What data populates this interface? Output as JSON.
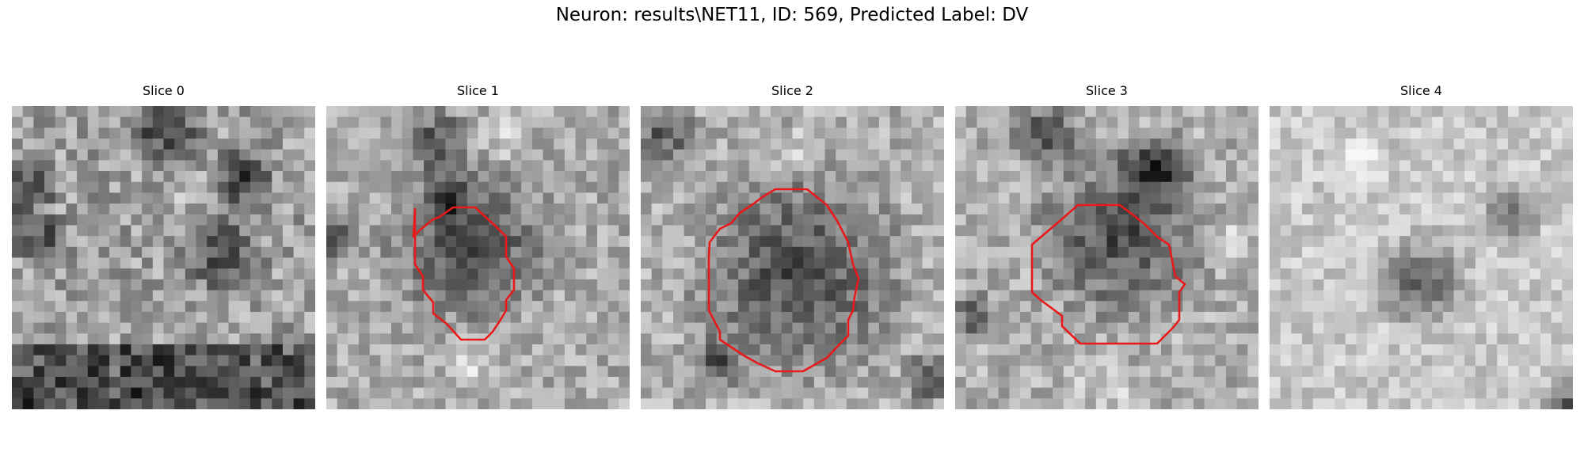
{
  "figure": {
    "title": "Neuron: results\\NET11, ID: 569, Predicted Label: DV"
  },
  "contour_color": "#e8191b",
  "grid_size": 28,
  "slices": [
    {
      "label": "Slice 0",
      "has_contour": false,
      "texture": {
        "base": 160,
        "range": 95,
        "seed": 11,
        "dark_blobs": [
          [
            0.05,
            0.27,
            0.08
          ],
          [
            0.5,
            0.07,
            0.1
          ],
          [
            0.75,
            0.25,
            0.09
          ],
          [
            0.7,
            0.5,
            0.1
          ],
          [
            0.1,
            0.45,
            0.07
          ]
        ],
        "dark_band": {
          "from": 0.77,
          "to": 1.0,
          "strength": 90
        },
        "light_spots": [
          [
            0.6,
            0.28,
            0.1
          ]
        ]
      }
    },
    {
      "label": "Slice 1",
      "has_contour": true,
      "texture": {
        "base": 170,
        "range": 80,
        "seed": 23,
        "dark_blobs": [
          [
            0.47,
            0.45,
            0.2
          ],
          [
            0.37,
            0.12,
            0.08
          ],
          [
            0.4,
            0.3,
            0.06
          ],
          [
            0.03,
            0.45,
            0.06
          ]
        ],
        "light_spots": [
          [
            0.6,
            0.1,
            0.1
          ],
          [
            0.5,
            0.85,
            0.12
          ]
        ]
      }
    },
    {
      "label": "Slice 2",
      "has_contour": true,
      "texture": {
        "base": 175,
        "range": 80,
        "seed": 37,
        "dark_blobs": [
          [
            0.52,
            0.55,
            0.27
          ],
          [
            0.08,
            0.08,
            0.08
          ],
          [
            0.25,
            0.85,
            0.07
          ],
          [
            0.94,
            0.9,
            0.06
          ]
        ],
        "light_spots": [
          [
            0.5,
            0.15,
            0.1
          ],
          [
            0.12,
            0.5,
            0.08
          ]
        ]
      }
    },
    {
      "label": "Slice 3",
      "has_contour": true,
      "texture": {
        "base": 175,
        "range": 80,
        "seed": 41,
        "dark_blobs": [
          [
            0.55,
            0.43,
            0.22
          ],
          [
            0.67,
            0.2,
            0.1
          ],
          [
            0.3,
            0.1,
            0.09
          ],
          [
            0.07,
            0.7,
            0.06
          ]
        ],
        "light_spots": [
          [
            0.9,
            0.45,
            0.08
          ],
          [
            0.5,
            0.92,
            0.12
          ]
        ]
      }
    },
    {
      "label": "Slice 4",
      "has_contour": false,
      "texture": {
        "base": 200,
        "range": 60,
        "seed": 53,
        "dark_blobs": [
          [
            0.5,
            0.58,
            0.12
          ],
          [
            0.98,
            0.98,
            0.06
          ],
          [
            0.8,
            0.35,
            0.07
          ]
        ],
        "light_spots": [
          [
            0.3,
            0.2,
            0.12
          ]
        ]
      }
    }
  ]
}
